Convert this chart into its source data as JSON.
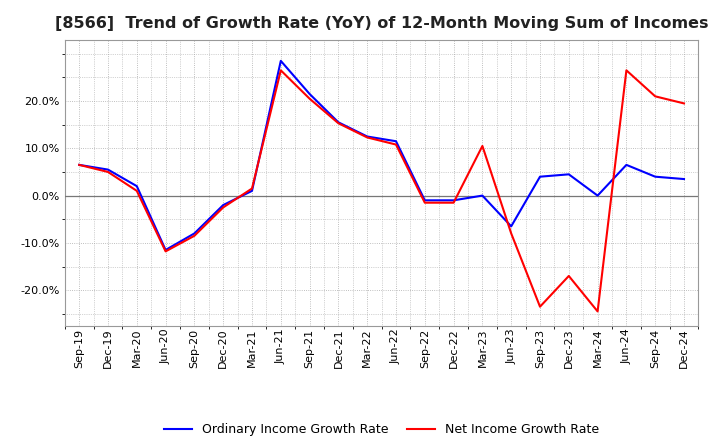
{
  "title": "[8566]  Trend of Growth Rate (YoY) of 12-Month Moving Sum of Incomes",
  "labels": [
    "Sep-19",
    "Dec-19",
    "Mar-20",
    "Jun-20",
    "Sep-20",
    "Dec-20",
    "Mar-21",
    "Jun-21",
    "Sep-21",
    "Dec-21",
    "Mar-22",
    "Jun-22",
    "Sep-22",
    "Dec-22",
    "Mar-23",
    "Jun-23",
    "Sep-23",
    "Dec-23",
    "Mar-24",
    "Jun-24",
    "Sep-24",
    "Dec-24"
  ],
  "ordinary_income": [
    0.065,
    0.055,
    0.02,
    -0.115,
    -0.08,
    -0.02,
    0.01,
    0.285,
    0.215,
    0.155,
    0.125,
    0.115,
    -0.01,
    -0.01,
    0.0,
    -0.065,
    0.04,
    0.045,
    0.0,
    0.065,
    0.04,
    0.035
  ],
  "net_income": [
    0.065,
    0.05,
    0.01,
    -0.118,
    -0.085,
    -0.025,
    0.015,
    0.265,
    0.205,
    0.153,
    0.123,
    0.108,
    -0.015,
    -0.015,
    0.105,
    -0.08,
    -0.235,
    -0.17,
    -0.245,
    0.265,
    0.21,
    0.195
  ],
  "ordinary_color": "#0000ff",
  "net_color": "#ff0000",
  "background_color": "#ffffff",
  "grid_color": "#aaaaaa",
  "ylim_min": -0.275,
  "ylim_max": 0.33,
  "yticks": [
    -0.2,
    -0.1,
    0.0,
    0.1,
    0.2
  ],
  "legend_ordinary": "Ordinary Income Growth Rate",
  "legend_net": "Net Income Growth Rate",
  "line_width": 1.5,
  "title_fontsize": 11.5,
  "tick_fontsize": 8.0,
  "legend_fontsize": 9.0
}
